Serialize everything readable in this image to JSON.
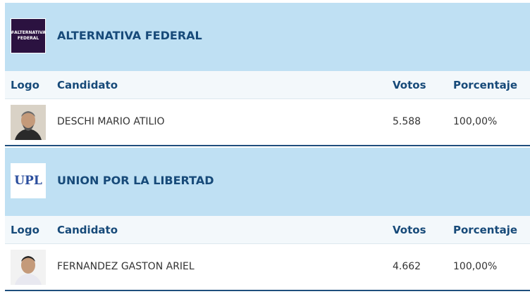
{
  "blocks": [
    {
      "logo_text": "#ALTERNATIVA FEDERAL",
      "party": "ALTERNATIVA FEDERAL",
      "columns": [
        "Logo",
        "Candidato",
        "Votos",
        "Porcentaje"
      ],
      "rows": [
        [
          "DESCHI MARIO ATILIO",
          "5.588",
          "100,00%"
        ]
      ]
    },
    {
      "logo_text": "UPL",
      "party": "UNION POR LA LIBERTAD",
      "columns": [
        "Logo",
        "Candidato",
        "Votos",
        "Porcentaje"
      ],
      "rows": [
        [
          "FERNANDEZ GASTON ARIEL",
          "4.662",
          "100,00%"
        ]
      ]
    }
  ]
}
